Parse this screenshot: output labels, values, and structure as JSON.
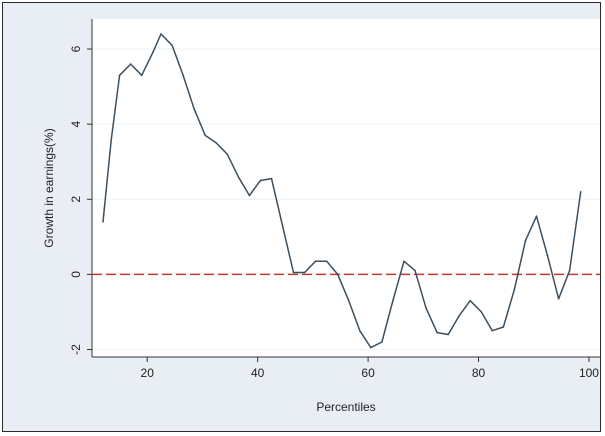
{
  "chart_data": {
    "type": "line",
    "title": "",
    "xlabel": "Percentiles",
    "ylabel": "Growth in earnings(%)",
    "xlim": [
      10,
      102
    ],
    "ylim": [
      -2.2,
      6.8
    ],
    "x_ticks": [
      20,
      40,
      60,
      80,
      100
    ],
    "x_tick_labels": [
      "20",
      "40",
      "60",
      "80",
      "100"
    ],
    "y_ticks": [
      -2,
      0,
      2,
      4,
      6
    ],
    "y_tick_labels": [
      "-2",
      "0",
      "2",
      "4",
      "6"
    ],
    "grid": true,
    "background_color": "#e8eef3",
    "plot_background_color": "#ffffff",
    "line_color": "#3d4f5c",
    "reference_line": {
      "y": 0,
      "color": "#c0392b",
      "style": "dashed"
    },
    "series": [
      {
        "x": [
          12,
          13.5,
          15,
          17,
          19,
          21,
          22.5,
          24.5,
          26.5,
          28.5,
          30.5,
          32.5,
          34.5,
          36.5,
          38.5,
          40.5,
          42.5,
          44.5,
          46.5,
          48.5,
          50.5,
          52.5,
          54.5,
          56.5,
          58.5,
          60.5,
          62.5,
          64.5,
          66.5,
          68.5,
          70.5,
          72.5,
          74.5,
          76.5,
          78.5,
          80.5,
          82.5,
          84.5,
          86.5,
          88.5,
          90.5,
          92.5,
          94.5,
          96.5,
          98.5
        ],
        "values": [
          1.4,
          3.6,
          5.3,
          5.6,
          5.3,
          5.9,
          6.4,
          6.1,
          5.3,
          4.4,
          3.7,
          3.5,
          3.2,
          2.6,
          2.1,
          2.5,
          2.55,
          1.3,
          0.05,
          0.05,
          0.35,
          0.35,
          0.0,
          -0.7,
          -1.5,
          -1.95,
          -1.8,
          -0.7,
          0.35,
          0.1,
          -0.9,
          -1.55,
          -1.6,
          -1.1,
          -0.7,
          -1.0,
          -1.5,
          -1.4,
          -0.4,
          0.9,
          1.55,
          0.5,
          -0.65,
          0.1,
          2.2
        ]
      }
    ]
  }
}
